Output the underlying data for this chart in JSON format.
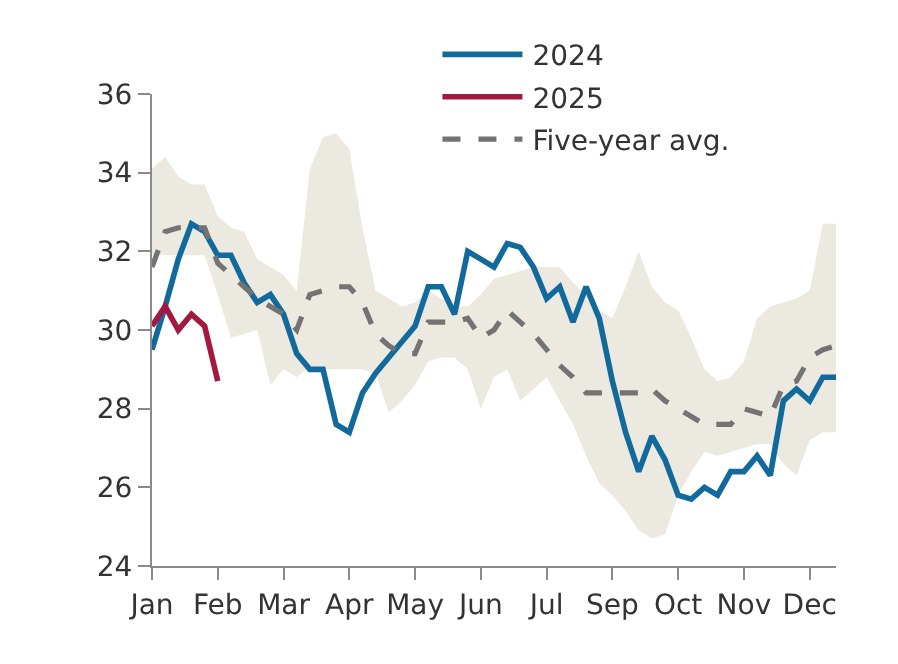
{
  "chart_data": {
    "type": "line",
    "categories": [
      "Jan",
      null,
      null,
      null,
      null,
      "Feb",
      null,
      null,
      null,
      null,
      "Mar",
      null,
      null,
      null,
      null,
      "Apr",
      null,
      null,
      null,
      null,
      "May",
      null,
      null,
      null,
      null,
      "Jun",
      null,
      null,
      null,
      null,
      "Jul",
      null,
      null,
      null,
      null,
      "Sep",
      null,
      null,
      null,
      null,
      "Oct",
      null,
      null,
      null,
      null,
      "Nov",
      null,
      null,
      null,
      null,
      "Dec",
      null,
      null
    ],
    "ylim": [
      24,
      36
    ],
    "yticks": [
      24,
      26,
      28,
      30,
      32,
      34,
      36
    ],
    "legend": "top",
    "marker": "none",
    "series": [
      {
        "name": "2024",
        "color": "#126a9c",
        "line_style": "solid",
        "values": [
          29.5,
          30.6,
          31.8,
          32.7,
          32.5,
          31.9,
          31.9,
          31.2,
          30.7,
          30.9,
          30.4,
          29.4,
          29.0,
          29.0,
          27.6,
          27.4,
          28.4,
          28.9,
          29.3,
          29.7,
          30.1,
          31.1,
          31.1,
          30.4,
          32.0,
          31.8,
          31.6,
          32.2,
          32.1,
          31.6,
          30.8,
          31.1,
          30.2,
          31.1,
          30.3,
          28.7,
          27.4,
          26.4,
          27.3,
          26.7,
          25.8,
          25.7,
          26.0,
          25.8,
          26.4,
          26.4,
          26.8,
          26.3,
          28.2,
          28.5,
          28.2,
          28.8,
          28.8
        ]
      },
      {
        "name": "2025",
        "color": "#a3193f",
        "line_style": "solid",
        "values": [
          30.1,
          30.6,
          30.0,
          30.4,
          30.1,
          28.7,
          null,
          null,
          null,
          null,
          null,
          null,
          null,
          null,
          null,
          null,
          null,
          null,
          null,
          null,
          null,
          null,
          null,
          null,
          null,
          null,
          null,
          null,
          null,
          null,
          null,
          null,
          null,
          null,
          null,
          null,
          null,
          null,
          null,
          null,
          null,
          null,
          null,
          null,
          null,
          null,
          null,
          null,
          null,
          null,
          null,
          null,
          null
        ]
      },
      {
        "name": "Five-year avg.",
        "color": "#737373",
        "line_style": "dashed",
        "values": [
          31.6,
          32.5,
          32.6,
          32.6,
          32.6,
          31.7,
          31.4,
          31.1,
          30.8,
          30.6,
          30.4,
          30.0,
          30.9,
          31.0,
          31.1,
          31.1,
          30.7,
          29.9,
          29.6,
          29.4,
          29.4,
          30.2,
          30.2,
          30.2,
          30.3,
          29.8,
          30.0,
          30.5,
          30.2,
          29.9,
          29.5,
          29.1,
          28.8,
          28.4,
          28.4,
          28.4,
          28.4,
          28.4,
          28.5,
          28.2,
          28.0,
          27.8,
          27.6,
          27.6,
          27.6,
          28.0,
          27.9,
          27.8,
          28.6,
          28.7,
          29.3,
          29.5,
          29.6
        ],
        "upper": [
          34.1,
          34.4,
          33.9,
          33.7,
          33.7,
          32.9,
          32.6,
          32.5,
          31.8,
          31.6,
          31.4,
          31.0,
          34.1,
          34.9,
          35.0,
          34.6,
          32.6,
          31.0,
          30.8,
          30.6,
          30.7,
          31.0,
          30.8,
          30.6,
          30.6,
          30.9,
          31.3,
          31.4,
          31.5,
          31.6,
          31.6,
          31.6,
          31.2,
          30.9,
          30.5,
          30.3,
          31.1,
          32.0,
          31.1,
          30.7,
          30.5,
          29.8,
          29.0,
          28.7,
          28.8,
          29.2,
          30.3,
          30.6,
          30.7,
          30.8,
          31.0,
          32.7,
          32.7
        ],
        "lower": [
          31.9,
          31.9,
          31.9,
          31.9,
          31.9,
          30.9,
          29.8,
          29.9,
          30.0,
          28.6,
          29.0,
          28.8,
          29.1,
          29.0,
          29.0,
          29.0,
          29.0,
          28.9,
          27.9,
          28.2,
          28.6,
          29.2,
          29.3,
          29.3,
          29.0,
          28.0,
          28.8,
          29.0,
          28.2,
          28.5,
          28.8,
          28.2,
          27.6,
          26.8,
          26.1,
          25.8,
          25.4,
          24.9,
          24.7,
          24.8,
          25.8,
          26.4,
          26.9,
          26.8,
          26.9,
          27.0,
          27.1,
          27.1,
          26.6,
          26.3,
          27.2,
          27.4,
          27.4
        ]
      }
    ]
  }
}
